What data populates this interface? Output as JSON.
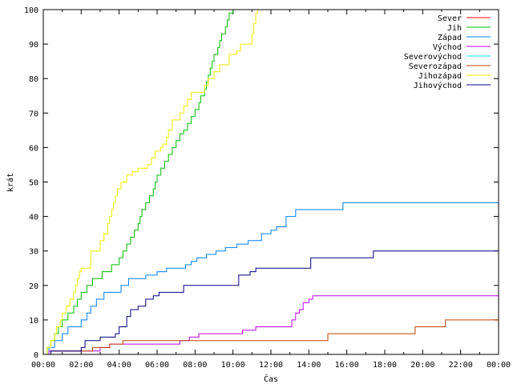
{
  "chart_data": {
    "type": "line",
    "title": "",
    "xlabel": "Čas",
    "ylabel": "krát",
    "xlim": [
      0,
      24
    ],
    "ylim": [
      0,
      100
    ],
    "x_ticks": [
      "00:00",
      "02:00",
      "04:00",
      "06:00",
      "08:00",
      "10:00",
      "12:00",
      "14:00",
      "16:00",
      "18:00",
      "20:00",
      "22:00",
      "00:00"
    ],
    "y_ticks": [
      "0",
      "10",
      "20",
      "30",
      "40",
      "50",
      "60",
      "70",
      "80",
      "90",
      "100"
    ],
    "legend_position": "top-right",
    "step": true,
    "series": [
      {
        "name": "Sever",
        "color": "#ff0000",
        "points": []
      },
      {
        "name": "Jih",
        "color": "#00c000",
        "points": [
          [
            0,
            0
          ],
          [
            0.2,
            2
          ],
          [
            0.4,
            4
          ],
          [
            0.6,
            6
          ],
          [
            0.8,
            8
          ],
          [
            1.0,
            10
          ],
          [
            1.3,
            12
          ],
          [
            1.6,
            14
          ],
          [
            1.8,
            16
          ],
          [
            2.0,
            18
          ],
          [
            2.3,
            20
          ],
          [
            2.6,
            22
          ],
          [
            3.0,
            22
          ],
          [
            3.1,
            24
          ],
          [
            3.5,
            24
          ],
          [
            3.6,
            26
          ],
          [
            4.0,
            28
          ],
          [
            4.2,
            30
          ],
          [
            4.4,
            32
          ],
          [
            4.6,
            34
          ],
          [
            4.8,
            36
          ],
          [
            5.0,
            38
          ],
          [
            5.1,
            40
          ],
          [
            5.2,
            42
          ],
          [
            5.4,
            44
          ],
          [
            5.6,
            46
          ],
          [
            5.8,
            48
          ],
          [
            5.9,
            50
          ],
          [
            6.0,
            52
          ],
          [
            6.2,
            54
          ],
          [
            6.4,
            56
          ],
          [
            6.6,
            58
          ],
          [
            6.8,
            60
          ],
          [
            7.0,
            62
          ],
          [
            7.2,
            64
          ],
          [
            7.4,
            65
          ],
          [
            7.6,
            67
          ],
          [
            7.8,
            69
          ],
          [
            8.0,
            71
          ],
          [
            8.2,
            73
          ],
          [
            8.3,
            75
          ],
          [
            8.5,
            77
          ],
          [
            8.6,
            79
          ],
          [
            8.7,
            81
          ],
          [
            8.8,
            83
          ],
          [
            8.9,
            85
          ],
          [
            9.0,
            87
          ],
          [
            9.2,
            89
          ],
          [
            9.3,
            91
          ],
          [
            9.4,
            93
          ],
          [
            9.6,
            95
          ],
          [
            9.7,
            97
          ],
          [
            9.8,
            99
          ],
          [
            10.0,
            100
          ]
        ]
      },
      {
        "name": "Západ",
        "color": "#0080ff",
        "points": [
          [
            0,
            0
          ],
          [
            0.3,
            2
          ],
          [
            0.6,
            4
          ],
          [
            1.0,
            6
          ],
          [
            1.3,
            8
          ],
          [
            1.6,
            8
          ],
          [
            2.0,
            10
          ],
          [
            2.3,
            12
          ],
          [
            2.5,
            14
          ],
          [
            2.8,
            16
          ],
          [
            3.2,
            18
          ],
          [
            3.6,
            18
          ],
          [
            3.8,
            18
          ],
          [
            4.1,
            20
          ],
          [
            4.5,
            22
          ],
          [
            5.1,
            22
          ],
          [
            5.4,
            23
          ],
          [
            6.0,
            24
          ],
          [
            6.5,
            25
          ],
          [
            7.0,
            25
          ],
          [
            7.5,
            26
          ],
          [
            7.8,
            27
          ],
          [
            8.1,
            28
          ],
          [
            8.6,
            29
          ],
          [
            9.1,
            30
          ],
          [
            9.6,
            31
          ],
          [
            10.2,
            32
          ],
          [
            10.8,
            33
          ],
          [
            11.5,
            35
          ],
          [
            12.0,
            36
          ],
          [
            12.3,
            37
          ],
          [
            12.8,
            40
          ],
          [
            13.3,
            42
          ],
          [
            14.8,
            42
          ],
          [
            15.8,
            44
          ],
          [
            23.9,
            44
          ],
          [
            24,
            48
          ]
        ]
      },
      {
        "name": "Východ",
        "color": "#c000ff",
        "points": [
          [
            0,
            0
          ],
          [
            0.3,
            1
          ],
          [
            2.2,
            1
          ],
          [
            3.0,
            2
          ],
          [
            3.5,
            3
          ],
          [
            4.5,
            3
          ],
          [
            7.2,
            4
          ],
          [
            7.7,
            5
          ],
          [
            8.0,
            5
          ],
          [
            8.2,
            6
          ],
          [
            10.5,
            7
          ],
          [
            11.2,
            8
          ],
          [
            12.7,
            8
          ],
          [
            13.1,
            10
          ],
          [
            13.3,
            12
          ],
          [
            13.5,
            13
          ],
          [
            13.7,
            15
          ],
          [
            14.0,
            16
          ],
          [
            14.2,
            17
          ],
          [
            24,
            17
          ]
        ]
      },
      {
        "name": "Severovýchod",
        "color": "#00eeee",
        "points": []
      },
      {
        "name": "Severozápad",
        "color": "#c04000",
        "points": [
          [
            0,
            0
          ],
          [
            0.4,
            1
          ],
          [
            2.6,
            2
          ],
          [
            3.5,
            3
          ],
          [
            4.2,
            4
          ],
          [
            5.5,
            4
          ],
          [
            7.3,
            4
          ],
          [
            12.0,
            4
          ],
          [
            14.5,
            4
          ],
          [
            15.0,
            6
          ],
          [
            19.0,
            6
          ],
          [
            19.6,
            8
          ],
          [
            20.6,
            8
          ],
          [
            21.2,
            10
          ],
          [
            24,
            10
          ]
        ]
      },
      {
        "name": "Jihozápad",
        "color": "#eeee00",
        "points": [
          [
            0,
            0
          ],
          [
            0.2,
            2
          ],
          [
            0.4,
            4
          ],
          [
            0.6,
            6
          ],
          [
            0.7,
            8
          ],
          [
            0.9,
            10
          ],
          [
            1.0,
            12
          ],
          [
            1.2,
            14
          ],
          [
            1.4,
            16
          ],
          [
            1.6,
            18
          ],
          [
            1.7,
            20
          ],
          [
            1.8,
            22
          ],
          [
            1.9,
            24
          ],
          [
            2.0,
            25
          ],
          [
            2.2,
            25
          ],
          [
            2.5,
            30
          ],
          [
            2.8,
            30
          ],
          [
            3.0,
            33
          ],
          [
            3.2,
            35
          ],
          [
            3.4,
            38
          ],
          [
            3.5,
            40
          ],
          [
            3.6,
            42
          ],
          [
            3.7,
            44
          ],
          [
            3.8,
            46
          ],
          [
            3.9,
            48
          ],
          [
            4.0,
            48
          ],
          [
            4.1,
            50
          ],
          [
            4.3,
            50
          ],
          [
            4.4,
            52
          ],
          [
            4.6,
            52
          ],
          [
            4.7,
            53
          ],
          [
            5.0,
            54
          ],
          [
            5.5,
            55
          ],
          [
            5.7,
            57
          ],
          [
            5.9,
            59
          ],
          [
            6.2,
            60
          ],
          [
            6.3,
            61
          ],
          [
            6.5,
            63
          ],
          [
            6.6,
            65
          ],
          [
            6.8,
            68
          ],
          [
            7.0,
            68
          ],
          [
            7.2,
            70
          ],
          [
            7.4,
            72
          ],
          [
            7.6,
            74
          ],
          [
            7.8,
            76
          ],
          [
            8.3,
            76
          ],
          [
            8.5,
            78
          ],
          [
            8.7,
            80
          ],
          [
            8.8,
            80
          ],
          [
            9.0,
            82
          ],
          [
            9.3,
            84
          ],
          [
            9.6,
            84
          ],
          [
            9.8,
            87
          ],
          [
            10.2,
            88
          ],
          [
            10.4,
            90
          ],
          [
            10.8,
            90
          ],
          [
            11.0,
            93
          ],
          [
            11.1,
            96
          ],
          [
            11.2,
            99
          ],
          [
            11.3,
            100
          ]
        ]
      },
      {
        "name": "Jihovýchod",
        "color": "#000080",
        "points": [
          [
            0,
            0
          ],
          [
            0.4,
            1
          ],
          [
            1.6,
            1
          ],
          [
            2.0,
            2
          ],
          [
            2.2,
            4
          ],
          [
            2.6,
            4
          ],
          [
            3.0,
            5
          ],
          [
            3.8,
            6
          ],
          [
            4.0,
            8
          ],
          [
            4.4,
            11
          ],
          [
            4.6,
            13
          ],
          [
            5.0,
            14
          ],
          [
            5.4,
            16
          ],
          [
            5.8,
            17
          ],
          [
            6.1,
            18
          ],
          [
            7.2,
            18
          ],
          [
            7.4,
            20
          ],
          [
            8.4,
            20
          ],
          [
            9.0,
            20
          ],
          [
            10.3,
            23
          ],
          [
            10.9,
            24
          ],
          [
            11.2,
            25
          ],
          [
            12.5,
            25
          ],
          [
            13.1,
            25
          ],
          [
            14.1,
            28
          ],
          [
            16.5,
            28
          ],
          [
            17.4,
            30
          ],
          [
            24,
            30
          ]
        ]
      }
    ]
  }
}
